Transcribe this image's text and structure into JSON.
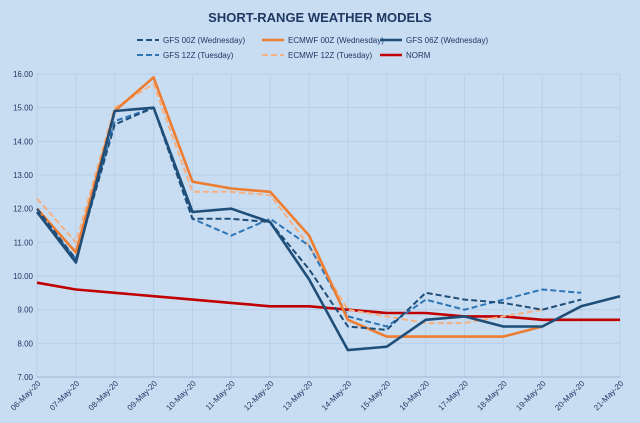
{
  "chart_data": {
    "type": "line",
    "title": "SHORT-RANGE WEATHER MODELS",
    "categories": [
      "06-May-20",
      "07-May-20",
      "08-May-20",
      "09-May-20",
      "10-May-20",
      "11-May-20",
      "12-May-20",
      "13-May-20",
      "14-May-20",
      "15-May-20",
      "16-May-20",
      "17-May-20",
      "18-May-20",
      "19-May-20",
      "20-May-20",
      "21-May-20"
    ],
    "ylim": [
      7.0,
      16.0
    ],
    "yticks": [
      "7.00",
      "8.00",
      "9.00",
      "10.00",
      "11.00",
      "12.00",
      "13.00",
      "14.00",
      "15.00",
      "16.00"
    ],
    "grid": true,
    "legend_position": "top",
    "series": [
      {
        "name": "GFS 00Z (Wednesday)",
        "color": "#1f4e79",
        "dash": "dashed",
        "values": [
          12.0,
          10.5,
          14.5,
          15.0,
          11.7,
          11.7,
          11.6,
          10.2,
          8.5,
          8.4,
          9.5,
          9.3,
          9.2,
          9.0,
          9.3,
          null
        ]
      },
      {
        "name": "ECMWF 00Z (Wednesday)",
        "color": "#ed7d31",
        "dash": "solid",
        "values": [
          12.0,
          10.7,
          14.9,
          15.9,
          12.8,
          12.6,
          12.5,
          11.2,
          8.7,
          8.2,
          8.2,
          8.2,
          8.2,
          8.5,
          null,
          null
        ]
      },
      {
        "name": "GFS 06Z (Wednesday)",
        "color": "#1f4e79",
        "dash": "solid",
        "values": [
          11.9,
          10.4,
          14.9,
          15.0,
          11.9,
          12.0,
          11.6,
          9.9,
          7.8,
          7.9,
          8.7,
          8.8,
          8.5,
          8.5,
          9.1,
          9.4
        ]
      },
      {
        "name": "GFS 12Z (Tuesday)",
        "color": "#2e75b6",
        "dash": "dashed",
        "values": [
          11.9,
          10.5,
          14.6,
          15.0,
          11.7,
          11.2,
          11.7,
          10.9,
          8.8,
          8.5,
          9.3,
          9.0,
          9.3,
          9.6,
          9.5,
          null
        ]
      },
      {
        "name": "ECMWF 12Z (Tuesday)",
        "color": "#f4b183",
        "dash": "dashed",
        "values": [
          12.3,
          11.0,
          15.0,
          15.7,
          12.5,
          12.5,
          12.4,
          10.9,
          9.0,
          8.8,
          8.6,
          8.6,
          8.8,
          9.0,
          null,
          null
        ]
      },
      {
        "name": "NORM",
        "color": "#c00000",
        "dash": "solid",
        "values": [
          9.8,
          9.6,
          9.5,
          9.4,
          9.3,
          9.2,
          9.1,
          9.1,
          9.0,
          8.9,
          8.9,
          8.8,
          8.8,
          8.7,
          8.7,
          8.7
        ]
      }
    ]
  }
}
